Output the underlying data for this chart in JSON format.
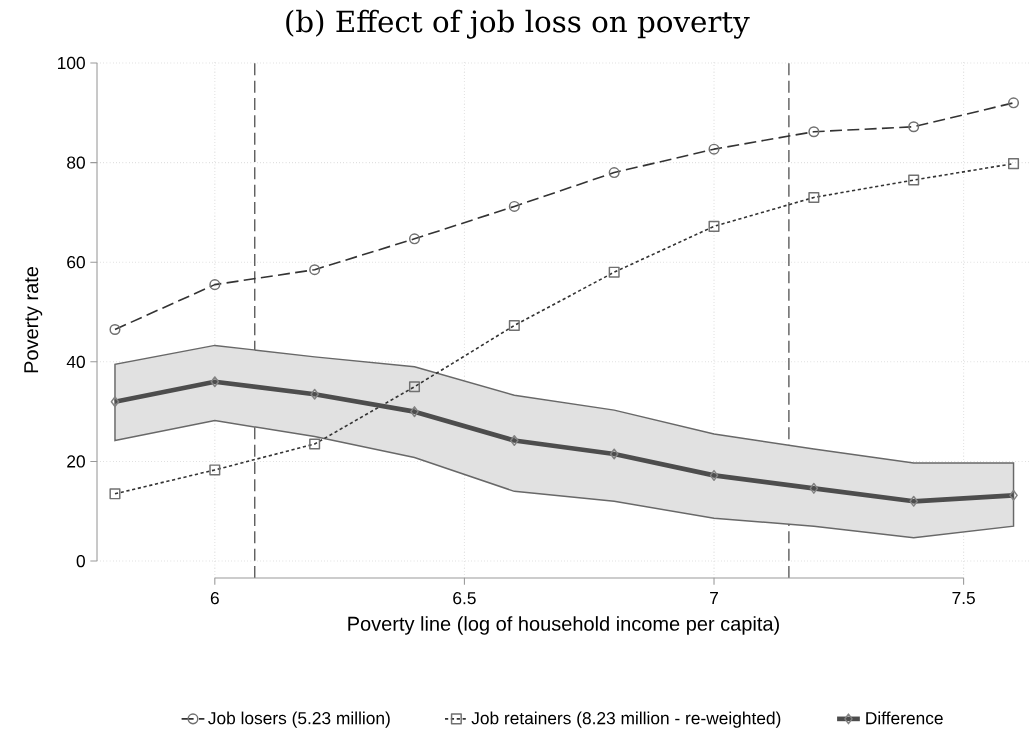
{
  "chart_data": {
    "type": "line",
    "title": "(b) Effect of job loss on poverty",
    "xlabel": "Poverty line (log of household income per capita)",
    "ylabel": "Poverty rate",
    "x": [
      5.8,
      6.0,
      6.2,
      6.4,
      6.6,
      6.8,
      7.0,
      7.2,
      7.4,
      7.6
    ],
    "series": [
      {
        "name": "Job losers (5.23 million)",
        "color": "#333333",
        "marker": "circle",
        "line_style": "dashed",
        "values": [
          46.5,
          55.5,
          58.5,
          64.7,
          71.2,
          78,
          82.7,
          86.2,
          87.2,
          92
        ]
      },
      {
        "name": "Job retainers (8.23 million - re-weighted)",
        "color": "#333333",
        "marker": "square",
        "line_style": "dotted",
        "values": [
          13.5,
          18.3,
          23.5,
          35,
          47.3,
          58,
          67.2,
          73,
          76.5,
          79.8
        ]
      },
      {
        "name": "Difference",
        "color": "#4d4d4d",
        "marker": "diamond",
        "line_style": "solid",
        "values": [
          32,
          36,
          33.5,
          30,
          24.2,
          21.5,
          17.2,
          14.6,
          12,
          13.2
        ],
        "lower": [
          24.2,
          28.2,
          25,
          20.8,
          14,
          12,
          8.6,
          7,
          4.7,
          7
        ],
        "upper": [
          39.5,
          43.3,
          41,
          39,
          33.3,
          30.3,
          25.5,
          22.5,
          19.7,
          19.7
        ]
      }
    ],
    "xlim": [
      5.764,
      7.633
    ],
    "ylim": [
      -3.4,
      100.2
    ],
    "xticks": [
      6,
      6.5,
      7,
      7.5
    ],
    "yticks": [
      0,
      20,
      40,
      60,
      80,
      100
    ],
    "grid": true,
    "legend": "bottom",
    "ref_lines": [
      {
        "axis": "x",
        "value": 6.08,
        "color": "#555555",
        "line_style": "dashed"
      },
      {
        "axis": "x",
        "value": 7.15,
        "color": "#555555",
        "line_style": "dashed"
      }
    ]
  }
}
